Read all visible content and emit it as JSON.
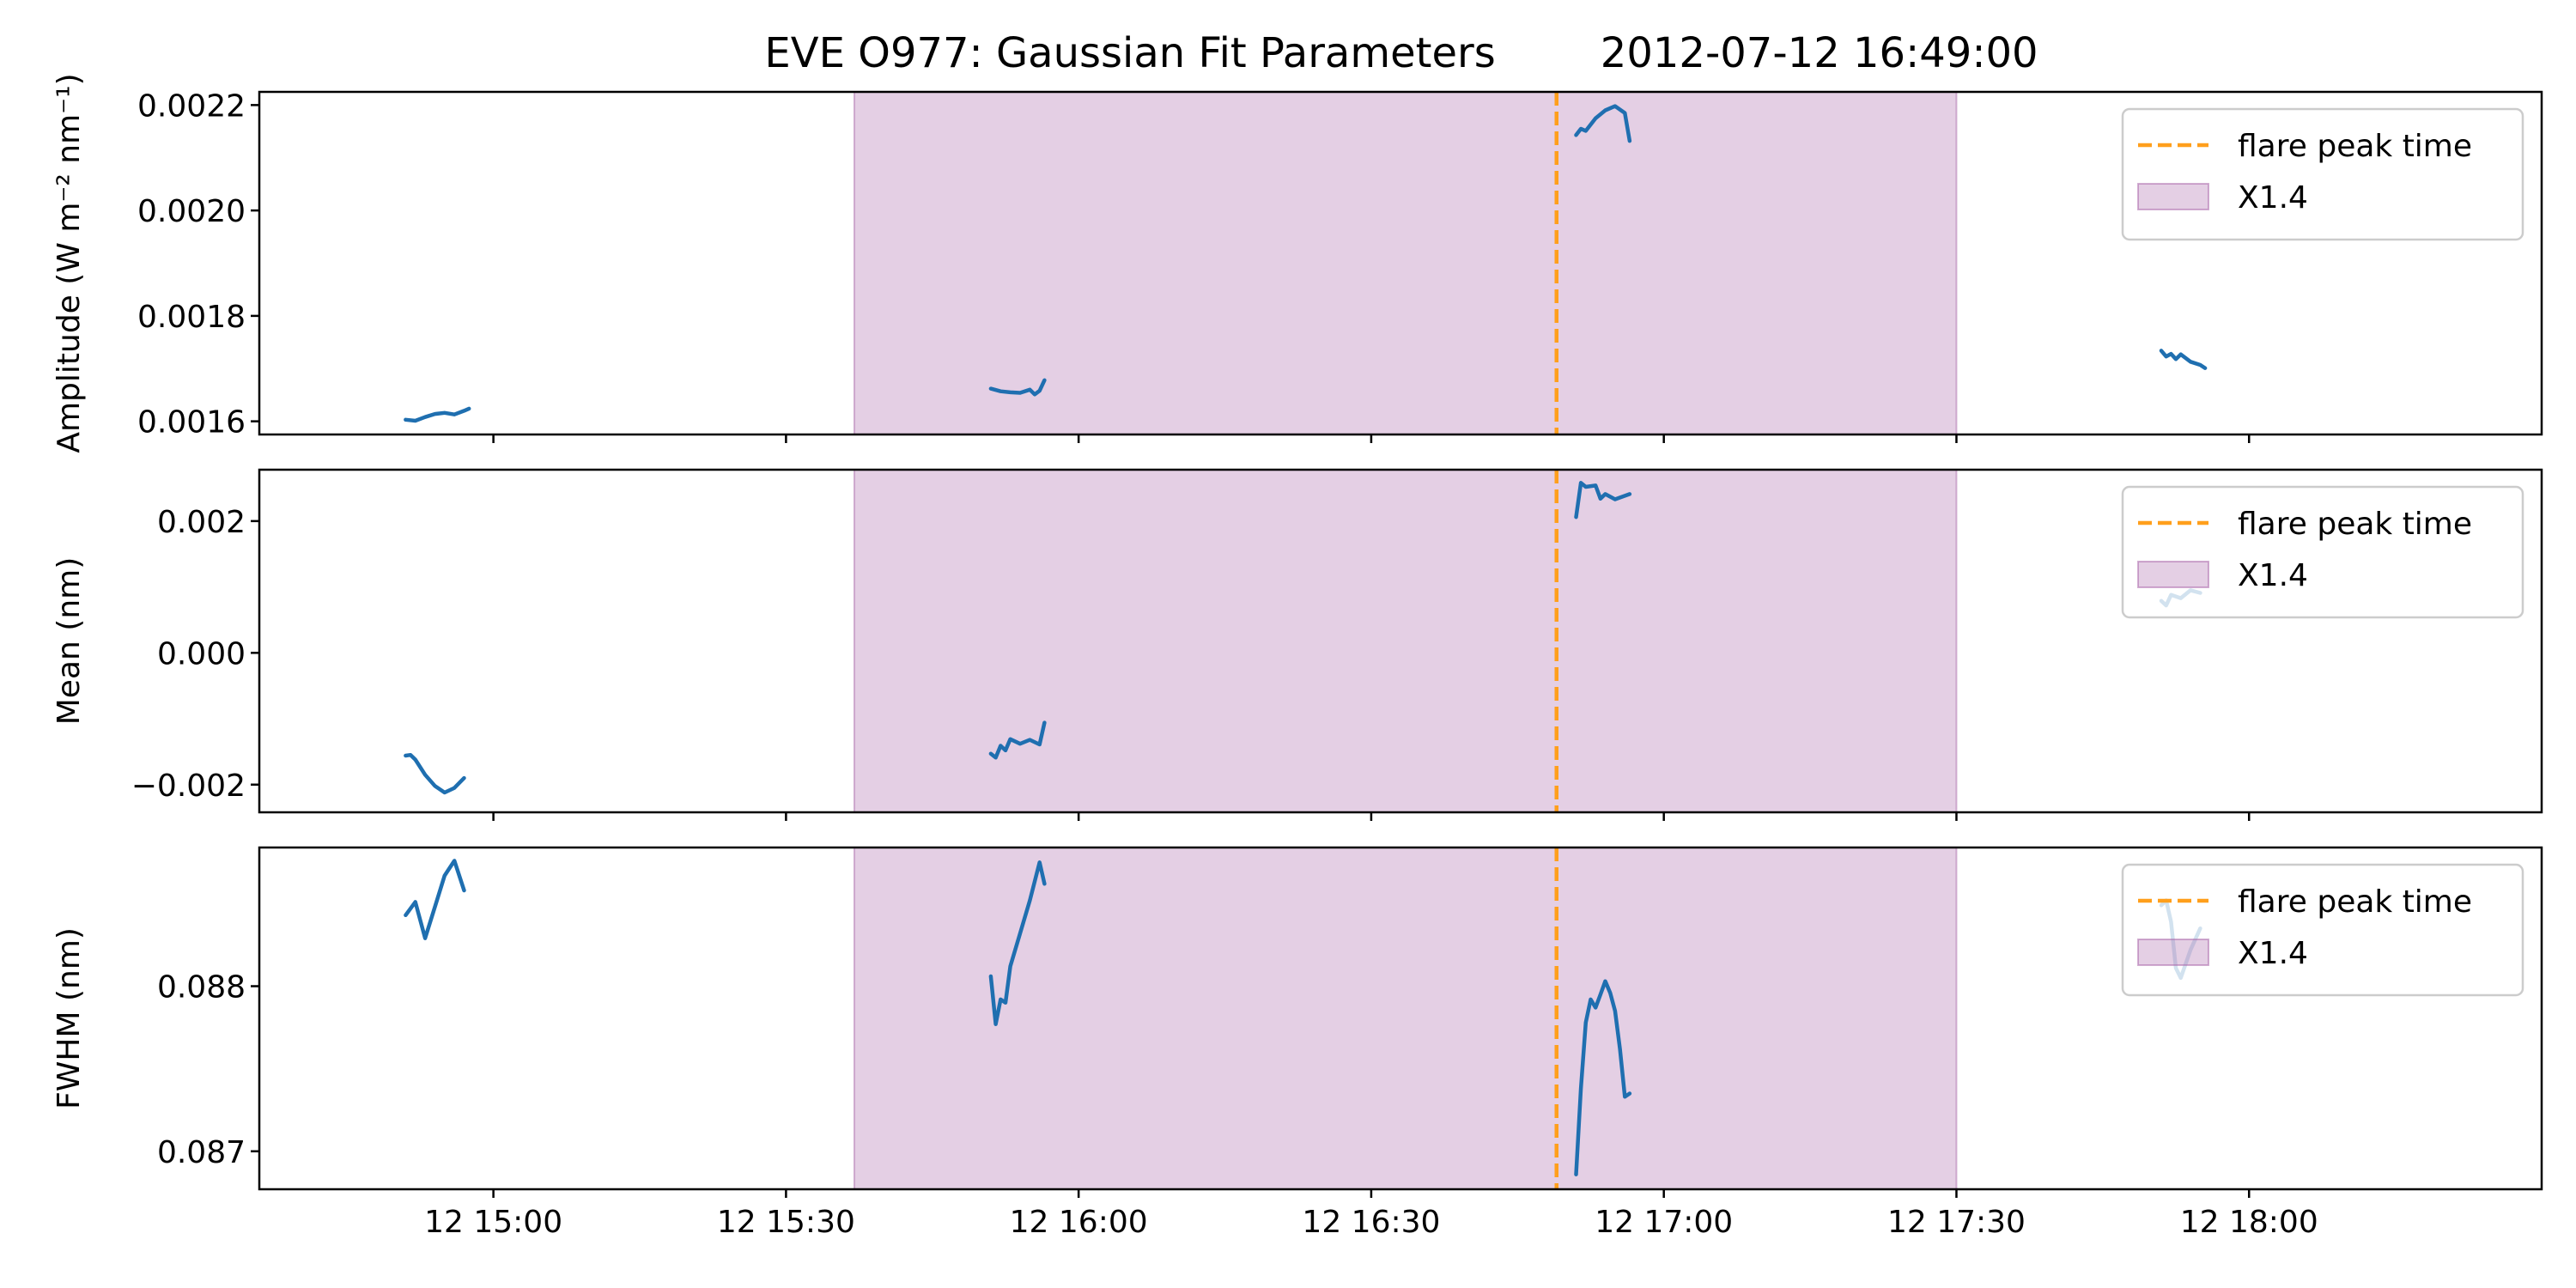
{
  "figure": {
    "title": "EVE O977: Gaussian Fit Parameters        2012-07-12 16:49:00"
  },
  "chart_data": {
    "type": "line",
    "xlim": [
      "2012-07-12 14:36",
      "2012-07-12 18:30"
    ],
    "x_ticks": [
      {
        "t": "2012-07-12 15:00",
        "label": "12 15:00"
      },
      {
        "t": "2012-07-12 15:30",
        "label": "12 15:30"
      },
      {
        "t": "2012-07-12 16:00",
        "label": "12 16:00"
      },
      {
        "t": "2012-07-12 16:30",
        "label": "12 16:30"
      },
      {
        "t": "2012-07-12 17:00",
        "label": "12 17:00"
      },
      {
        "t": "2012-07-12 17:30",
        "label": "12 17:30"
      },
      {
        "t": "2012-07-12 18:00",
        "label": "12 18:00"
      }
    ],
    "flare": {
      "peak_time": "2012-07-12 16:49",
      "start": "2012-07-12 15:37",
      "end": "2012-07-12 17:30",
      "peak_color": "#ff9f1c",
      "span_color": "#a55fa5",
      "legend": [
        "flare peak time",
        "X1.4"
      ]
    },
    "line_color": "#1f6fb0",
    "legend_placement": "top-right",
    "grid": false,
    "panels": [
      {
        "ylabel": "Amplitude (W m⁻² nm⁻¹)",
        "ylim": [
          0.001575,
          0.002225
        ],
        "y_ticks": [
          {
            "v": 0.0016,
            "label": "0.0016"
          },
          {
            "v": 0.0018,
            "label": "0.0018"
          },
          {
            "v": 0.002,
            "label": "0.0020"
          },
          {
            "v": 0.0022,
            "label": "0.0022"
          }
        ],
        "segments": [
          [
            [
              "2012-07-12 14:51:00",
              0.001603
            ],
            [
              "2012-07-12 14:52:00",
              0.001601
            ],
            [
              "2012-07-12 14:53:00",
              0.001608
            ],
            [
              "2012-07-12 14:54:00",
              0.001614
            ],
            [
              "2012-07-12 14:55:00",
              0.001616
            ],
            [
              "2012-07-12 14:56:00",
              0.001613
            ],
            [
              "2012-07-12 14:57:00",
              0.00162
            ],
            [
              "2012-07-12 14:57:30",
              0.001624
            ]
          ],
          [
            [
              "2012-07-12 15:51:00",
              0.001662
            ],
            [
              "2012-07-12 15:52:00",
              0.001657
            ],
            [
              "2012-07-12 15:53:00",
              0.001655
            ],
            [
              "2012-07-12 15:54:00",
              0.001654
            ],
            [
              "2012-07-12 15:55:00",
              0.00166
            ],
            [
              "2012-07-12 15:55:30",
              0.001651
            ],
            [
              "2012-07-12 15:56:00",
              0.001658
            ],
            [
              "2012-07-12 15:56:30",
              0.001678
            ]
          ],
          [
            [
              "2012-07-12 16:51:00",
              0.002143
            ],
            [
              "2012-07-12 16:51:30",
              0.002155
            ],
            [
              "2012-07-12 16:52:00",
              0.002151
            ],
            [
              "2012-07-12 16:53:00",
              0.002175
            ],
            [
              "2012-07-12 16:54:00",
              0.00219
            ],
            [
              "2012-07-12 16:55:00",
              0.002198
            ],
            [
              "2012-07-12 16:56:00",
              0.002185
            ],
            [
              "2012-07-12 16:56:30",
              0.002132
            ]
          ],
          [
            [
              "2012-07-12 17:51:00",
              0.001734
            ],
            [
              "2012-07-12 17:51:30",
              0.001723
            ],
            [
              "2012-07-12 17:52:00",
              0.001728
            ],
            [
              "2012-07-12 17:52:30",
              0.001718
            ],
            [
              "2012-07-12 17:53:00",
              0.001727
            ],
            [
              "2012-07-12 17:54:00",
              0.001713
            ],
            [
              "2012-07-12 17:55:00",
              0.001707
            ],
            [
              "2012-07-12 17:55:30",
              0.001701
            ]
          ]
        ]
      },
      {
        "ylabel": "Mean (nm)",
        "ylim": [
          -0.00242,
          0.00278
        ],
        "y_ticks": [
          {
            "v": -0.002,
            "label": "−0.002"
          },
          {
            "v": 0,
            "label": "0.000"
          },
          {
            "v": 0.002,
            "label": "0.002"
          }
        ],
        "segments": [
          [
            [
              "2012-07-12 14:51:00",
              -0.00156
            ],
            [
              "2012-07-12 14:51:30",
              -0.00155
            ],
            [
              "2012-07-12 14:52:00",
              -0.00162
            ],
            [
              "2012-07-12 14:53:00",
              -0.00185
            ],
            [
              "2012-07-12 14:54:00",
              -0.00202
            ],
            [
              "2012-07-12 14:55:00",
              -0.00212
            ],
            [
              "2012-07-12 14:56:00",
              -0.00205
            ],
            [
              "2012-07-12 14:57:00",
              -0.0019
            ]
          ],
          [
            [
              "2012-07-12 15:51:00",
              -0.00153
            ],
            [
              "2012-07-12 15:51:30",
              -0.00159
            ],
            [
              "2012-07-12 15:52:00",
              -0.00141
            ],
            [
              "2012-07-12 15:52:30",
              -0.00148
            ],
            [
              "2012-07-12 15:53:00",
              -0.00131
            ],
            [
              "2012-07-12 15:54:00",
              -0.00138
            ],
            [
              "2012-07-12 15:55:00",
              -0.00132
            ],
            [
              "2012-07-12 15:56:00",
              -0.00139
            ],
            [
              "2012-07-12 15:56:30",
              -0.00106
            ]
          ],
          [
            [
              "2012-07-12 16:51:00",
              0.00206
            ],
            [
              "2012-07-12 16:51:30",
              0.00258
            ],
            [
              "2012-07-12 16:52:00",
              0.00252
            ],
            [
              "2012-07-12 16:53:00",
              0.00254
            ],
            [
              "2012-07-12 16:53:30",
              0.00234
            ],
            [
              "2012-07-12 16:54:00",
              0.00241
            ],
            [
              "2012-07-12 16:55:00",
              0.00233
            ],
            [
              "2012-07-12 16:56:30",
              0.00241
            ]
          ],
          [
            [
              "2012-07-12 17:51:00",
              0.00079
            ],
            [
              "2012-07-12 17:51:30",
              0.00072
            ],
            [
              "2012-07-12 17:52:00",
              0.00088
            ],
            [
              "2012-07-12 17:53:00",
              0.00083
            ],
            [
              "2012-07-12 17:54:00",
              0.00095
            ],
            [
              "2012-07-12 17:55:00",
              0.00091
            ]
          ]
        ]
      },
      {
        "ylabel": "FWHM (nm)",
        "ylim": [
          0.08677,
          0.08884
        ],
        "y_ticks": [
          {
            "v": 0.087,
            "label": "0.087"
          },
          {
            "v": 0.088,
            "label": "0.088"
          }
        ],
        "segments": [
          [
            [
              "2012-07-12 14:51:00",
              0.08843
            ],
            [
              "2012-07-12 14:52:00",
              0.08851
            ],
            [
              "2012-07-12 14:53:00",
              0.08829
            ],
            [
              "2012-07-12 14:54:00",
              0.08848
            ],
            [
              "2012-07-12 14:55:00",
              0.08867
            ],
            [
              "2012-07-12 14:56:00",
              0.08876
            ],
            [
              "2012-07-12 14:57:00",
              0.08858
            ]
          ],
          [
            [
              "2012-07-12 15:51:00",
              0.08806
            ],
            [
              "2012-07-12 15:51:30",
              0.08777
            ],
            [
              "2012-07-12 15:52:00",
              0.08792
            ],
            [
              "2012-07-12 15:52:30",
              0.0879
            ],
            [
              "2012-07-12 15:53:00",
              0.08812
            ],
            [
              "2012-07-12 15:54:00",
              0.08832
            ],
            [
              "2012-07-12 15:55:00",
              0.08852
            ],
            [
              "2012-07-12 15:56:00",
              0.08875
            ],
            [
              "2012-07-12 15:56:30",
              0.08862
            ]
          ],
          [
            [
              "2012-07-12 16:51:00",
              0.08686
            ],
            [
              "2012-07-12 16:51:30",
              0.08738
            ],
            [
              "2012-07-12 16:52:00",
              0.08778
            ],
            [
              "2012-07-12 16:52:30",
              0.08792
            ],
            [
              "2012-07-12 16:53:00",
              0.08787
            ],
            [
              "2012-07-12 16:53:30",
              0.08795
            ],
            [
              "2012-07-12 16:54:00",
              0.08803
            ],
            [
              "2012-07-12 16:54:30",
              0.08796
            ],
            [
              "2012-07-12 16:55:00",
              0.08785
            ],
            [
              "2012-07-12 16:55:30",
              0.08762
            ],
            [
              "2012-07-12 16:56:00",
              0.08733
            ],
            [
              "2012-07-12 16:56:30",
              0.08735
            ]
          ],
          [
            [
              "2012-07-12 17:51:00",
              0.08849
            ],
            [
              "2012-07-12 17:51:30",
              0.08852
            ],
            [
              "2012-07-12 17:52:00",
              0.08839
            ],
            [
              "2012-07-12 17:52:30",
              0.08811
            ],
            [
              "2012-07-12 17:53:00",
              0.08805
            ],
            [
              "2012-07-12 17:54:00",
              0.08822
            ],
            [
              "2012-07-12 17:55:00",
              0.08835
            ]
          ]
        ]
      }
    ]
  }
}
